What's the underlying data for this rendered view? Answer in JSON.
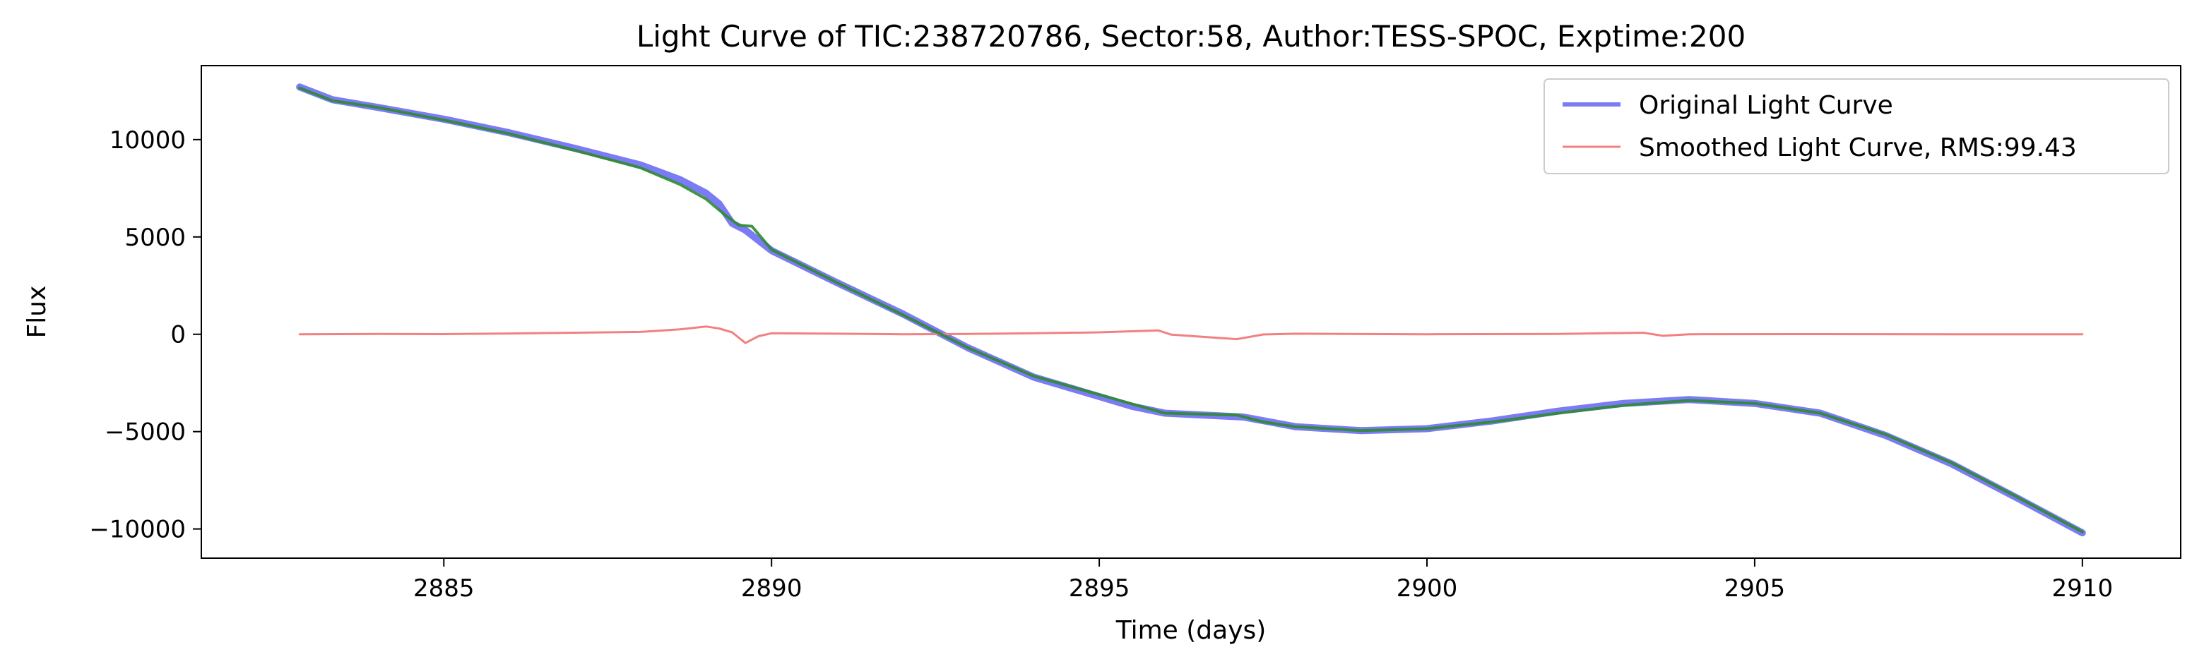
{
  "chart_data": {
    "type": "line",
    "title": "Light Curve of TIC:238720786, Sector:58, Author:TESS-SPOC, Exptime:200",
    "xlabel": "Time (days)",
    "ylabel": "Flux",
    "xlim": [
      2881.3,
      2911.5
    ],
    "ylim": [
      -11500,
      13800
    ],
    "xticks": [
      2885,
      2890,
      2895,
      2900,
      2905,
      2910
    ],
    "xtick_labels": [
      "2885",
      "2890",
      "2895",
      "2900",
      "2905",
      "2910"
    ],
    "yticks": [
      10000,
      5000,
      0,
      -5000,
      -10000
    ],
    "ytick_labels": [
      "10000",
      "5000",
      "0",
      "−5000",
      "−10000"
    ],
    "grid": false,
    "legend_position": "top-right",
    "legend": [
      {
        "label": "Original Light Curve",
        "color": "#7b7bf5"
      },
      {
        "label": "Smoothed Light Curve, RMS:99.43",
        "color": "#f38080"
      }
    ],
    "series": [
      {
        "name": "Original Light Curve",
        "color": "#7b7bf5",
        "x": [
          2882.8,
          2883.3,
          2884.0,
          2885.0,
          2886.0,
          2887.0,
          2888.0,
          2888.6,
          2889.0,
          2889.2,
          2889.4,
          2889.6,
          2890.0,
          2891.0,
          2892.0,
          2893.0,
          2894.0,
          2895.0,
          2895.5,
          2896.0,
          2897.2,
          2898.0,
          2899.0,
          2900.0,
          2901.0,
          2902.0,
          2903.0,
          2904.0,
          2905.0,
          2906.0,
          2907.0,
          2908.0,
          2909.0,
          2910.0
        ],
        "y": [
          12700,
          12050,
          11650,
          11050,
          10350,
          9550,
          8700,
          7950,
          7250,
          6700,
          5700,
          5350,
          4300,
          2650,
          1050,
          -700,
          -2200,
          -3200,
          -3700,
          -4050,
          -4250,
          -4750,
          -4950,
          -4850,
          -4450,
          -3950,
          -3550,
          -3350,
          -3550,
          -4050,
          -5200,
          -6650,
          -8400,
          -10200
        ]
      },
      {
        "name": "Smoothed Light Curve, RMS:99.43",
        "color": "#f38080",
        "x": [
          2882.8,
          2884.0,
          2885.0,
          2886.0,
          2887.0,
          2888.0,
          2888.6,
          2889.0,
          2889.2,
          2889.4,
          2889.6,
          2889.8,
          2890.0,
          2891.0,
          2892.0,
          2893.0,
          2894.0,
          2895.0,
          2895.9,
          2896.1,
          2897.1,
          2897.5,
          2898.0,
          2900.0,
          2902.0,
          2903.3,
          2903.6,
          2904.0,
          2906.0,
          2908.0,
          2910.0
        ],
        "y": [
          0,
          20,
          10,
          40,
          80,
          120,
          250,
          400,
          300,
          100,
          -450,
          -100,
          50,
          30,
          0,
          20,
          50,
          100,
          200,
          -20,
          -250,
          -10,
          30,
          0,
          20,
          80,
          -80,
          0,
          10,
          0,
          0
        ]
      },
      {
        "color": "#2e8b2e",
        "x": [
          2882.8,
          2883.3,
          2884.0,
          2885.0,
          2886.0,
          2887.0,
          2888.0,
          2888.6,
          2889.0,
          2889.3,
          2889.5,
          2889.7,
          2890.0,
          2891.0,
          2892.0,
          2893.0,
          2894.0,
          2895.0,
          2896.0,
          2897.1,
          2897.5,
          2898.0,
          2899.0,
          2900.0,
          2901.0,
          2902.0,
          2903.0,
          2904.0,
          2905.0,
          2906.0,
          2907.0,
          2908.0,
          2909.0,
          2910.0
        ],
        "y": [
          12650,
          12000,
          11650,
          11000,
          10300,
          9450,
          8550,
          7700,
          6950,
          6100,
          5600,
          5550,
          4350,
          2650,
          1000,
          -700,
          -2150,
          -3100,
          -4050,
          -4150,
          -4500,
          -4750,
          -4950,
          -4850,
          -4500,
          -4050,
          -3650,
          -3400,
          -3550,
          -4050,
          -5150,
          -6600,
          -8350,
          -10150
        ]
      }
    ]
  }
}
